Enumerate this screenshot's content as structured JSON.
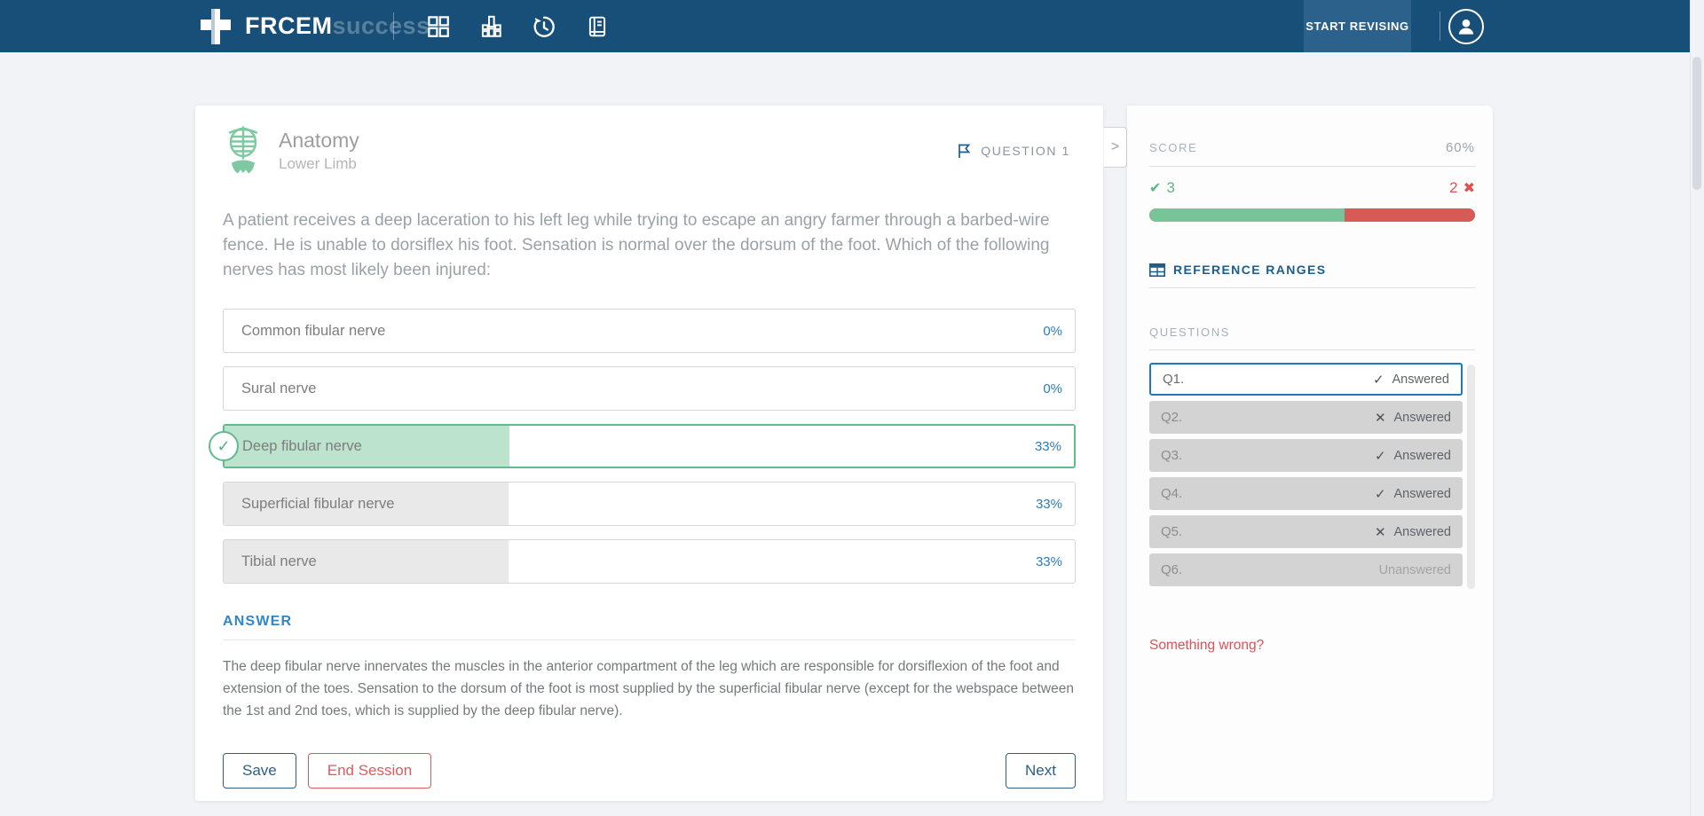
{
  "navbar": {
    "brand": {
      "bold": "FRCEM",
      "light": "success"
    },
    "icons": [
      {
        "name": "dashboard-grid-icon"
      },
      {
        "name": "stats-bars-icon"
      },
      {
        "name": "history-icon"
      },
      {
        "name": "notes-book-icon"
      }
    ],
    "start_revising_label": "START REVISING"
  },
  "question_card": {
    "category": "Anatomy",
    "subcategory": "Lower Limb",
    "question_label": "QUESTION 1",
    "question_text": "A patient receives a deep laceration to his left leg while trying to escape an angry farmer through a barbed-wire fence. He is unable to dorsiflex his foot. Sensation is normal over the dorsum of the foot. Which of the following nerves has most likely been injured:",
    "options": [
      {
        "label": "Common fibular nerve",
        "percent": "0%",
        "share_pct": 0,
        "state": "plain"
      },
      {
        "label": "Sural nerve",
        "percent": "0%",
        "share_pct": 0,
        "state": "plain"
      },
      {
        "label": "Deep fibular nerve",
        "percent": "33%",
        "share_pct": 33.5,
        "state": "selected-correct"
      },
      {
        "label": "Superficial fibular nerve",
        "percent": "33%",
        "share_pct": 33.5,
        "state": "stat-filled"
      },
      {
        "label": "Tibial nerve",
        "percent": "33%",
        "share_pct": 33.5,
        "state": "stat-filled"
      }
    ],
    "answer_heading": "ANSWER",
    "answer_text": "The deep fibular nerve innervates the muscles in the anterior compartment of the leg which are responsible for dorsiflexion of the foot and extension of the toes. Sensation to the dorsum of the foot is most supplied by the superficial fibular nerve (except for the webspace between the 1st and 2nd toes, which is supplied by the deep fibular nerve).",
    "buttons": {
      "save": "Save",
      "end_session": "End Session",
      "next": "Next"
    }
  },
  "sidebar": {
    "score": {
      "label": "SCORE",
      "value": "60%",
      "correct": "3",
      "incorrect": "2",
      "correct_pct": 60
    },
    "reference_ranges_label": "REFERENCE RANGES",
    "questions_label": "QUESTIONS",
    "questions": [
      {
        "label": "Q1.",
        "status": "Answered",
        "mark_glyph": "✓",
        "active": true
      },
      {
        "label": "Q2.",
        "status": "Answered",
        "mark_glyph": "✕",
        "active": false
      },
      {
        "label": "Q3.",
        "status": "Answered",
        "mark_glyph": "✓",
        "active": false
      },
      {
        "label": "Q4.",
        "status": "Answered",
        "mark_glyph": "✓",
        "active": false
      },
      {
        "label": "Q5.",
        "status": "Answered",
        "mark_glyph": "✕",
        "active": false
      },
      {
        "label": "Q6.",
        "status": "Unanswered",
        "mark_glyph": "",
        "active": false
      }
    ],
    "something_wrong_label": "Something wrong?"
  },
  "glyphs": {
    "check": "✓",
    "cross": "✕",
    "bold_check": "✔",
    "bold_cross": "✖",
    "chevron_right": ">"
  },
  "colors": {
    "navbar": "#174f78",
    "accent_blue": "#2f87c9",
    "green": "#62bb8c",
    "red": "#d65a55",
    "active_question_border": "#1d78c1"
  }
}
